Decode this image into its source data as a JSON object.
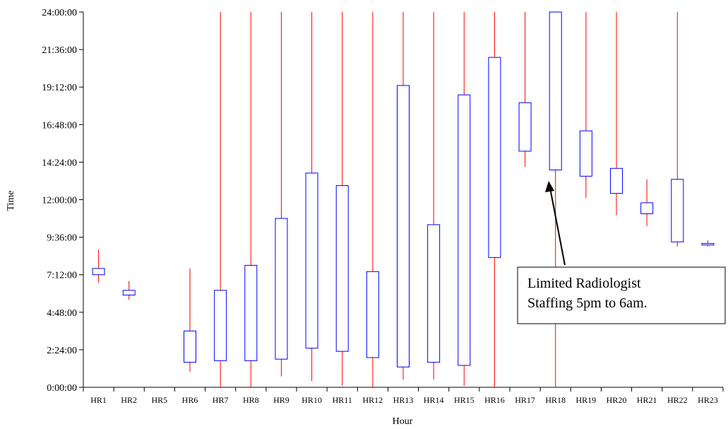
{
  "chart_data": {
    "type": "box",
    "xlabel": "Hour",
    "ylabel": "Time",
    "ylim_hours": [
      0,
      24
    ],
    "y_tick_labels": [
      "0:00:00",
      "2:24:00",
      "4:48:00",
      "7:12:00",
      "9:36:00",
      "12:00:00",
      "14:24:00",
      "16:48:00",
      "19:12:00",
      "21:36:00",
      "24:00:00"
    ],
    "grid": false,
    "categories": [
      "HR1",
      "HR2",
      "HR5",
      "HR6",
      "HR7",
      "HR8",
      "HR9",
      "HR10",
      "HR11",
      "HR12",
      "HR13",
      "HR14",
      "HR15",
      "HR16",
      "HR17",
      "HR18",
      "HR19",
      "HR20",
      "HR21",
      "HR22",
      "HR23"
    ],
    "series": [
      {
        "boxes": [
          {
            "category": "HR1",
            "whisker_low": 6.7,
            "box_low": 7.2,
            "box_high": 7.6,
            "whisker_high": 8.8
          },
          {
            "category": "HR2",
            "whisker_low": 5.6,
            "box_low": 5.9,
            "box_high": 6.2,
            "whisker_high": 6.8
          },
          {
            "category": "HR5"
          },
          {
            "category": "HR6",
            "whisker_low": 1.0,
            "box_low": 1.6,
            "box_high": 3.6,
            "whisker_high": 7.6
          },
          {
            "category": "HR7",
            "whisker_low": 0.0,
            "box_low": 1.7,
            "box_high": 6.2,
            "whisker_high": 24.0
          },
          {
            "category": "HR8",
            "whisker_low": 0.0,
            "box_low": 1.7,
            "box_high": 7.8,
            "whisker_high": 24.0
          },
          {
            "category": "HR9",
            "whisker_low": 0.7,
            "box_low": 1.8,
            "box_high": 10.8,
            "whisker_high": 24.0
          },
          {
            "category": "HR10",
            "whisker_low": 0.4,
            "box_low": 2.5,
            "box_high": 13.7,
            "whisker_high": 24.0
          },
          {
            "category": "HR11",
            "whisker_low": 0.1,
            "box_low": 2.3,
            "box_high": 12.9,
            "whisker_high": 24.0
          },
          {
            "category": "HR12",
            "whisker_low": 0.0,
            "box_low": 1.9,
            "box_high": 7.4,
            "whisker_high": 24.0
          },
          {
            "category": "HR13",
            "whisker_low": 0.5,
            "box_low": 1.3,
            "box_high": 19.3,
            "whisker_high": 24.0
          },
          {
            "category": "HR14",
            "whisker_low": 0.5,
            "box_low": 1.6,
            "box_high": 10.4,
            "whisker_high": 24.0
          },
          {
            "category": "HR15",
            "whisker_low": 0.1,
            "box_low": 1.4,
            "box_high": 18.7,
            "whisker_high": 24.0
          },
          {
            "category": "HR16",
            "whisker_low": 0.0,
            "box_low": 8.3,
            "box_high": 21.1,
            "whisker_high": 24.0
          },
          {
            "category": "HR17",
            "whisker_low": 14.1,
            "box_low": 15.1,
            "box_high": 18.2,
            "whisker_high": 24.0
          },
          {
            "category": "HR18",
            "whisker_low": 0.0,
            "box_low": 13.9,
            "box_high": 24.0,
            "whisker_high": 24.0
          },
          {
            "category": "HR19",
            "whisker_low": 12.1,
            "box_low": 13.5,
            "box_high": 16.4,
            "whisker_high": 24.0
          },
          {
            "category": "HR20",
            "whisker_low": 11.0,
            "box_low": 12.4,
            "box_high": 14.0,
            "whisker_high": 24.0
          },
          {
            "category": "HR21",
            "whisker_low": 10.3,
            "box_low": 11.1,
            "box_high": 11.8,
            "whisker_high": 13.3
          },
          {
            "category": "HR22",
            "whisker_low": 9.0,
            "box_low": 9.3,
            "box_high": 13.3,
            "whisker_high": 24.0
          },
          {
            "category": "HR23",
            "whisker_low": 9.0,
            "box_low": 9.1,
            "box_high": 9.2,
            "whisker_high": 9.4
          }
        ]
      }
    ],
    "annotation": {
      "text_line1": "Limited Radiologist",
      "text_line2": "Staffing 5pm to  6am.",
      "points_to": "HR18"
    },
    "colors": {
      "box": "#0000ff",
      "whisker": "#ff0000",
      "axis": "#000000"
    }
  }
}
